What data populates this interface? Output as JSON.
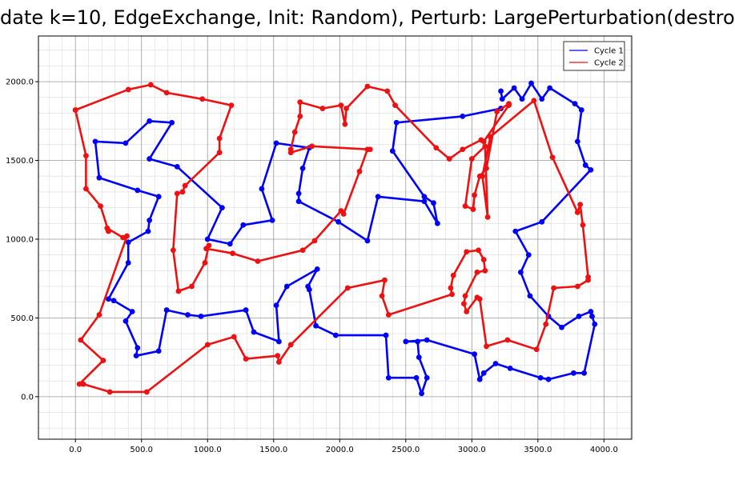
{
  "chart_data": {
    "type": "line",
    "title": "date k=10, EdgeExchange, Init: Random), Perturb: LargePerturbation(destro",
    "xlim": [
      -280,
      4210
    ],
    "ylim": [
      -270,
      2290
    ],
    "x_ticks": [
      0,
      500,
      1000,
      1500,
      2000,
      2500,
      3000,
      3500,
      4000
    ],
    "y_ticks": [
      0,
      500,
      1000,
      1500,
      2000
    ],
    "x_tick_labels": [
      "0.0",
      "500.0",
      "1000.0",
      "1500.0",
      "2000.0",
      "2500.0",
      "3000.0",
      "3500.0",
      "4000.0"
    ],
    "y_tick_labels": [
      "0.0",
      "500.0",
      "1000.0",
      "1500.0",
      "2000.0"
    ],
    "minor_grid_step": 100,
    "grid": true,
    "legend": "top-right",
    "series": [
      {
        "name": "Cycle 1",
        "color": "#0000ff",
        "points": [
          [
            3220,
            1940
          ],
          [
            3230,
            1890
          ],
          [
            3320,
            1960
          ],
          [
            3380,
            1890
          ],
          [
            3450,
            1990
          ],
          [
            3530,
            1890
          ],
          [
            3590,
            1960
          ],
          [
            3780,
            1860
          ],
          [
            3830,
            1820
          ],
          [
            3800,
            1620
          ],
          [
            3860,
            1470
          ],
          [
            3900,
            1440
          ],
          [
            3530,
            1110
          ],
          [
            3330,
            1050
          ],
          [
            3430,
            900
          ],
          [
            3370,
            790
          ],
          [
            3440,
            640
          ],
          [
            3580,
            510
          ],
          [
            3680,
            440
          ],
          [
            3810,
            510
          ],
          [
            3900,
            540
          ],
          [
            3910,
            510
          ],
          [
            3930,
            460
          ],
          [
            3850,
            150
          ],
          [
            3770,
            150
          ],
          [
            3580,
            110
          ],
          [
            3520,
            120
          ],
          [
            3290,
            180
          ],
          [
            3180,
            210
          ],
          [
            3090,
            150
          ],
          [
            3060,
            110
          ],
          [
            3020,
            270
          ],
          [
            2660,
            360
          ],
          [
            2500,
            350
          ],
          [
            2590,
            350
          ],
          [
            2600,
            250
          ],
          [
            2660,
            120
          ],
          [
            2620,
            20
          ],
          [
            2580,
            120
          ],
          [
            2370,
            120
          ],
          [
            2350,
            390
          ],
          [
            1970,
            390
          ],
          [
            1820,
            450
          ],
          [
            1770,
            680
          ],
          [
            1760,
            700
          ],
          [
            1830,
            810
          ],
          [
            1600,
            700
          ],
          [
            1520,
            580
          ],
          [
            1540,
            350
          ],
          [
            1350,
            410
          ],
          [
            1290,
            550
          ],
          [
            950,
            510
          ],
          [
            850,
            520
          ],
          [
            690,
            550
          ],
          [
            630,
            290
          ],
          [
            460,
            260
          ],
          [
            470,
            310
          ],
          [
            380,
            480
          ],
          [
            430,
            540
          ],
          [
            290,
            610
          ],
          [
            250,
            620
          ],
          [
            400,
            850
          ],
          [
            400,
            980
          ],
          [
            550,
            1050
          ],
          [
            560,
            1120
          ],
          [
            630,
            1270
          ],
          [
            470,
            1310
          ],
          [
            180,
            1390
          ],
          [
            150,
            1620
          ],
          [
            380,
            1610
          ],
          [
            560,
            1750
          ],
          [
            730,
            1740
          ],
          [
            560,
            1510
          ],
          [
            770,
            1460
          ],
          [
            1110,
            1200
          ],
          [
            1000,
            1000
          ],
          [
            1170,
            970
          ],
          [
            1270,
            1090
          ],
          [
            1490,
            1120
          ],
          [
            1410,
            1320
          ],
          [
            1520,
            1610
          ],
          [
            1770,
            1580
          ],
          [
            1720,
            1450
          ],
          [
            1690,
            1290
          ],
          [
            1690,
            1240
          ],
          [
            1990,
            1110
          ],
          [
            2210,
            990
          ],
          [
            2290,
            1270
          ],
          [
            2640,
            1240
          ],
          [
            2740,
            1100
          ],
          [
            2710,
            1230
          ],
          [
            2640,
            1270
          ],
          [
            2400,
            1560
          ],
          [
            2430,
            1740
          ],
          [
            2930,
            1780
          ],
          [
            3220,
            1830
          ]
        ]
      },
      {
        "name": "Cycle 2",
        "color": "#ee1111",
        "points": [
          [
            0,
            1820
          ],
          [
            400,
            1950
          ],
          [
            570,
            1980
          ],
          [
            690,
            1930
          ],
          [
            960,
            1890
          ],
          [
            1180,
            1850
          ],
          [
            1090,
            1640
          ],
          [
            1090,
            1550
          ],
          [
            830,
            1340
          ],
          [
            810,
            1300
          ],
          [
            770,
            1290
          ],
          [
            740,
            930
          ],
          [
            780,
            670
          ],
          [
            880,
            700
          ],
          [
            980,
            850
          ],
          [
            1010,
            960
          ],
          [
            990,
            940
          ],
          [
            1190,
            910
          ],
          [
            1380,
            860
          ],
          [
            1720,
            930
          ],
          [
            1810,
            990
          ],
          [
            2010,
            1180
          ],
          [
            2030,
            1160
          ],
          [
            2150,
            1430
          ],
          [
            2210,
            1570
          ],
          [
            2230,
            1570
          ],
          [
            1790,
            1590
          ],
          [
            1630,
            1550
          ],
          [
            1630,
            1570
          ],
          [
            1660,
            1680
          ],
          [
            1700,
            1780
          ],
          [
            1700,
            1870
          ],
          [
            1870,
            1830
          ],
          [
            2010,
            1850
          ],
          [
            2040,
            1730
          ],
          [
            2050,
            1830
          ],
          [
            2210,
            1970
          ],
          [
            2360,
            1940
          ],
          [
            2420,
            1850
          ],
          [
            2730,
            1580
          ],
          [
            2830,
            1510
          ],
          [
            2930,
            1570
          ],
          [
            3070,
            1630
          ],
          [
            3090,
            1620
          ],
          [
            3280,
            1850
          ],
          [
            3280,
            1860
          ],
          [
            3190,
            1810
          ],
          [
            3110,
            1450
          ],
          [
            3060,
            1400
          ],
          [
            3020,
            1280
          ],
          [
            3010,
            1190
          ],
          [
            2950,
            1210
          ],
          [
            3000,
            1510
          ],
          [
            3100,
            1590
          ],
          [
            3120,
            1140
          ],
          [
            3080,
            1400
          ],
          [
            3140,
            1650
          ],
          [
            3470,
            1880
          ],
          [
            3610,
            1520
          ],
          [
            3800,
            1170
          ],
          [
            3820,
            1220
          ],
          [
            3840,
            1090
          ],
          [
            3880,
            760
          ],
          [
            3880,
            740
          ],
          [
            3800,
            700
          ],
          [
            3620,
            690
          ],
          [
            3560,
            460
          ],
          [
            3490,
            300
          ],
          [
            3270,
            360
          ],
          [
            3110,
            320
          ],
          [
            3060,
            620
          ],
          [
            3040,
            630
          ],
          [
            2960,
            540
          ],
          [
            2940,
            590
          ],
          [
            2950,
            640
          ],
          [
            3040,
            790
          ],
          [
            3100,
            800
          ],
          [
            3090,
            870
          ],
          [
            3050,
            930
          ],
          [
            2960,
            920
          ],
          [
            2860,
            770
          ],
          [
            2840,
            690
          ],
          [
            2850,
            650
          ],
          [
            2370,
            520
          ],
          [
            2320,
            640
          ],
          [
            2340,
            740
          ],
          [
            2060,
            690
          ],
          [
            1630,
            330
          ],
          [
            1540,
            220
          ],
          [
            1530,
            260
          ],
          [
            1290,
            240
          ],
          [
            1200,
            380
          ],
          [
            1000,
            330
          ],
          [
            540,
            30
          ],
          [
            260,
            30
          ],
          [
            60,
            80
          ],
          [
            30,
            80
          ],
          [
            210,
            230
          ],
          [
            40,
            360
          ],
          [
            180,
            520
          ],
          [
            390,
            1020
          ],
          [
            360,
            1010
          ],
          [
            240,
            1070
          ],
          [
            250,
            1050
          ],
          [
            190,
            1210
          ],
          [
            80,
            1320
          ],
          [
            80,
            1530
          ],
          [
            0,
            1820
          ]
        ]
      }
    ]
  }
}
